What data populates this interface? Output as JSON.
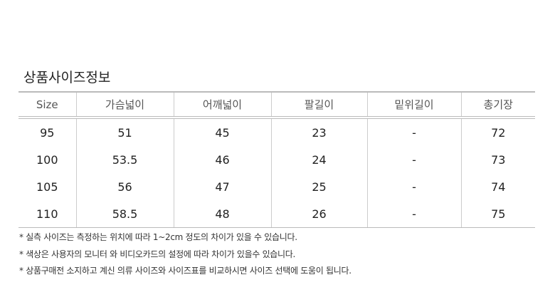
{
  "title": "상품사이즈정보",
  "headers": [
    "Size",
    "가슴넓이",
    "어깨넓이",
    "팔길이",
    "밑위길이",
    "총기장"
  ],
  "rows": [
    [
      "95",
      "51",
      "45",
      "23",
      "-",
      "72"
    ],
    [
      "100",
      "53.5",
      "46",
      "24",
      "-",
      "73"
    ],
    [
      "105",
      "56",
      "47",
      "25",
      "-",
      "74"
    ],
    [
      "110",
      "58.5",
      "48",
      "26",
      "-",
      "75"
    ]
  ],
  "notes": [
    "* 실측 사이즈는 측정하는 위치에 따라 1~2cm 정도의 차이가 있을 수 있습니다.",
    "* 색상은 사용자의 모니터 와 비디오카드의 설정에 따라 차이가 있을수 있습니다.",
    "* 상품구매전 소지하고 계신 의류 사이즈와 사이즈표를 비교하시면 사이즈 선택에 도움이 됩니다."
  ]
}
